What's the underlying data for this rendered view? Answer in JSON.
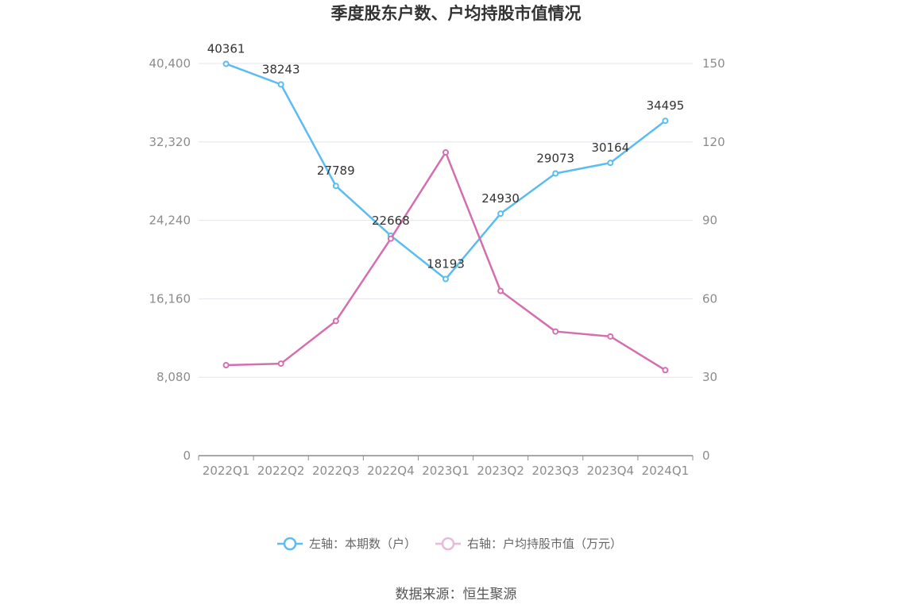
{
  "chart_data": {
    "type": "line",
    "title": "季度股东户数、户均持股市值情况",
    "categories": [
      "2022Q1",
      "2022Q2",
      "2022Q3",
      "2022Q4",
      "2023Q1",
      "2023Q2",
      "2023Q3",
      "2023Q4",
      "2024Q1"
    ],
    "left_axis": {
      "min": 0,
      "max": 40400,
      "ticks": [
        "0",
        "8,080",
        "16,160",
        "24,240",
        "32,320",
        "40,400"
      ],
      "tick_values": [
        0,
        8080,
        16160,
        24240,
        32320,
        40400
      ]
    },
    "right_axis": {
      "min": 0,
      "max": 150,
      "ticks": [
        "0",
        "30",
        "60",
        "90",
        "120",
        "150"
      ],
      "tick_values": [
        0,
        30,
        60,
        90,
        120,
        150
      ]
    },
    "grid": true,
    "legend_position": "bottom",
    "series": [
      {
        "name": "左轴：本期数（户）",
        "axis": "left",
        "color": "#5bbcf0",
        "values": [
          40361,
          38243,
          27789,
          22668,
          18193,
          24930,
          29073,
          30164,
          34495
        ],
        "labels": [
          "40361",
          "38243",
          "27789",
          "22668",
          "18193",
          "24930",
          "29073",
          "30164",
          "34495"
        ]
      },
      {
        "name": "右轴：户均持股市值（万元）",
        "axis": "right",
        "color": "#d46faf",
        "values": [
          34.6,
          35.2,
          51.5,
          83.0,
          116.0,
          63.0,
          47.5,
          45.6,
          32.7
        ]
      }
    ]
  },
  "source": "数据来源：恒生聚源"
}
